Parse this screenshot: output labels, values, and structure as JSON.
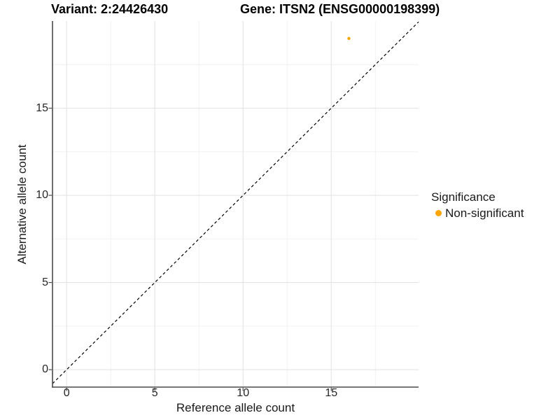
{
  "titles": {
    "variant": "Variant: 2:24426430",
    "gene": "Gene: ITSN2 (ENSG00000198399)"
  },
  "chart_data": {
    "type": "scatter",
    "title": "Variant: 2:24426430   Gene: ITSN2 (ENSG00000198399)",
    "xlabel": "Reference allele count",
    "ylabel": "Alternative allele count",
    "xlim": [
      -0.8,
      19.95
    ],
    "ylim": [
      -1.0,
      20.0
    ],
    "x_ticks": [
      0,
      5,
      10,
      15
    ],
    "y_ticks": [
      0,
      5,
      10,
      15
    ],
    "x_minor_ticks": [
      2.5,
      7.5,
      12.5,
      17.5
    ],
    "y_minor_ticks": [
      2.5,
      7.5,
      12.5,
      17.5
    ],
    "grid": true,
    "series": [
      {
        "name": "Non-significant",
        "color": "#FFA500",
        "points": [
          {
            "x": 16,
            "y": 19
          }
        ]
      }
    ],
    "reference_line": {
      "type": "identity",
      "equation": "y = x",
      "style": "dashed",
      "color": "#000000"
    },
    "legend": {
      "title": "Significance",
      "position": "right",
      "items": [
        {
          "label": "Non-significant",
          "color": "#FFA500",
          "marker": "circle"
        }
      ]
    },
    "colors": {
      "point": "#FFA500",
      "axis_line": "#4a4a4a",
      "major_grid": "#e4e4e4",
      "minor_grid": "#f0f0f0",
      "tick_text": "#262626"
    }
  }
}
